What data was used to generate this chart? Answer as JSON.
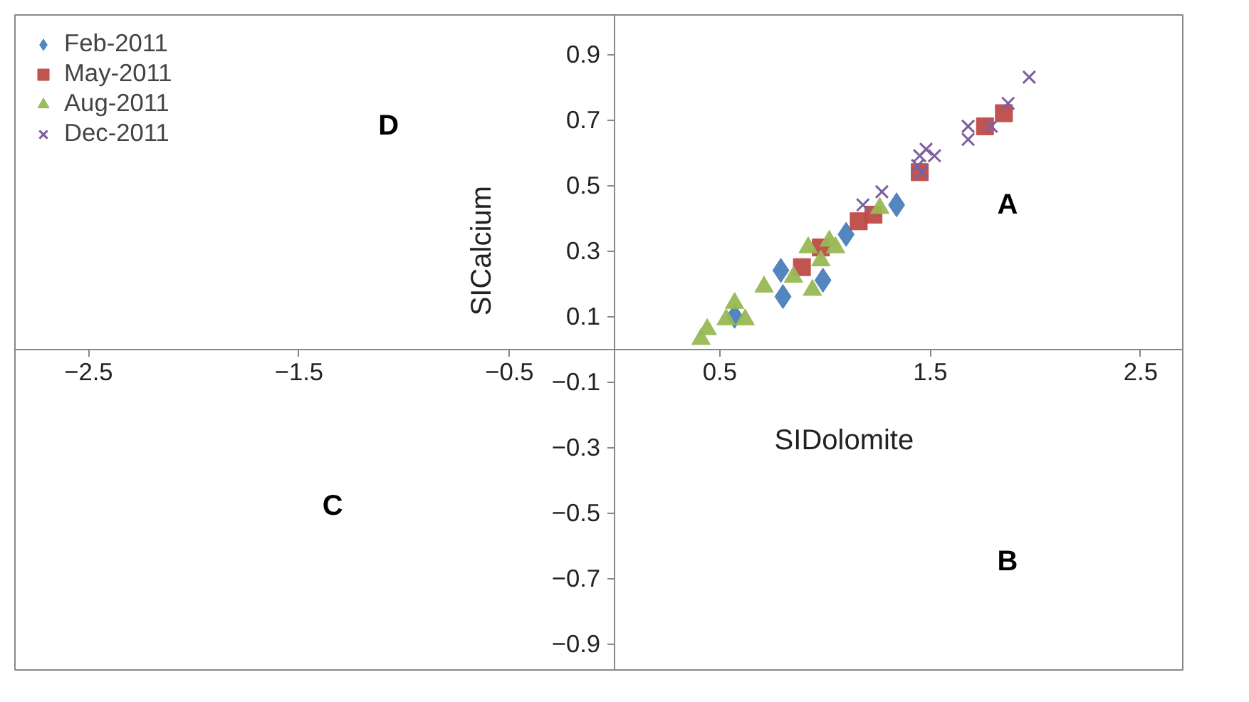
{
  "chart_data": {
    "type": "scatter",
    "xlabel": "SIDolomite",
    "ylabel": "SICalcium",
    "xlim": [
      -2.85,
      2.7
    ],
    "ylim": [
      -0.98,
      1.02
    ],
    "xticks": [
      -2.5,
      -1.5,
      -0.5,
      0.5,
      1.5,
      2.5
    ],
    "yticks": [
      -0.9,
      -0.7,
      -0.5,
      -0.3,
      -0.1,
      0.1,
      0.3,
      0.5,
      0.7,
      0.9
    ],
    "grid": false,
    "legend": "top left",
    "series": [
      {
        "name": "Feb-2011",
        "color": "#4a7ebb",
        "marker": "diamond",
        "x": [
          0.8,
          0.79,
          0.99,
          1.1,
          1.34,
          0.57
        ],
        "values": [
          0.16,
          0.24,
          0.21,
          0.35,
          0.44,
          0.1
        ]
      },
      {
        "name": "May-2011",
        "color": "#be4b48",
        "marker": "square",
        "x": [
          0.89,
          0.98,
          1.16,
          1.23,
          1.45,
          1.76,
          1.85
        ],
        "values": [
          0.25,
          0.31,
          0.39,
          0.41,
          0.54,
          0.68,
          0.72
        ]
      },
      {
        "name": "Aug-2011",
        "color": "#98b954",
        "marker": "triangle",
        "x": [
          0.41,
          0.44,
          0.57,
          0.62,
          0.53,
          0.71,
          0.85,
          0.94,
          0.92,
          0.98,
          1.02,
          1.05,
          1.26
        ],
        "values": [
          0.03,
          0.06,
          0.14,
          0.09,
          0.09,
          0.19,
          0.22,
          0.18,
          0.31,
          0.27,
          0.33,
          0.31,
          0.43
        ]
      },
      {
        "name": "Dec-2011",
        "color": "#7d60a0",
        "marker": "cross",
        "x": [
          1.18,
          1.27,
          1.45,
          1.48,
          1.52,
          1.44,
          1.46,
          1.68,
          1.68,
          1.79,
          1.87,
          1.97
        ],
        "values": [
          0.44,
          0.48,
          0.59,
          0.61,
          0.59,
          0.56,
          0.54,
          0.68,
          0.64,
          0.68,
          0.75,
          0.83
        ]
      }
    ],
    "annotations": [
      "A",
      "B",
      "C",
      "D"
    ]
  }
}
